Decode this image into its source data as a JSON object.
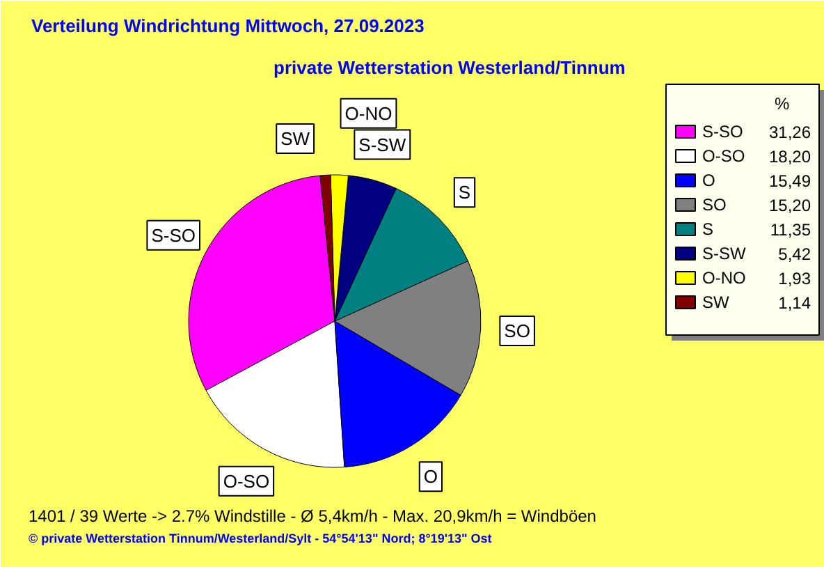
{
  "chart_data": {
    "type": "pie",
    "title": "Verteilung Windrichtung   Mittwoch, 27.09.2023",
    "subtitle": "private Wetterstation Westerland/Tinnum",
    "categories": [
      "S-SO",
      "O-SO",
      "O",
      "SO",
      "S",
      "S-SW",
      "O-NO",
      "SW"
    ],
    "values": [
      31.26,
      18.2,
      15.49,
      15.2,
      11.35,
      5.42,
      1.93,
      1.14
    ],
    "value_labels": [
      "31,26",
      "18,20",
      "15,49",
      "15,20",
      "11,35",
      "5,42",
      "1,93",
      "1,14"
    ],
    "colors": [
      "#ff00ff",
      "#ffffff",
      "#0000ff",
      "#808080",
      "#008080",
      "#000080",
      "#ffff00",
      "#800000"
    ],
    "legend": "right",
    "legend_title": "%",
    "annotations": [
      "1401 / 39 Werte  -> 2.7% Windstille   -   Ø 5,4km/h  -  Max. 20,9km/h = Windböen",
      "© private Wetterstation Tinnum/Westerland/Sylt   -   54°54'13\" Nord; 8°19'13\" Ost"
    ]
  }
}
